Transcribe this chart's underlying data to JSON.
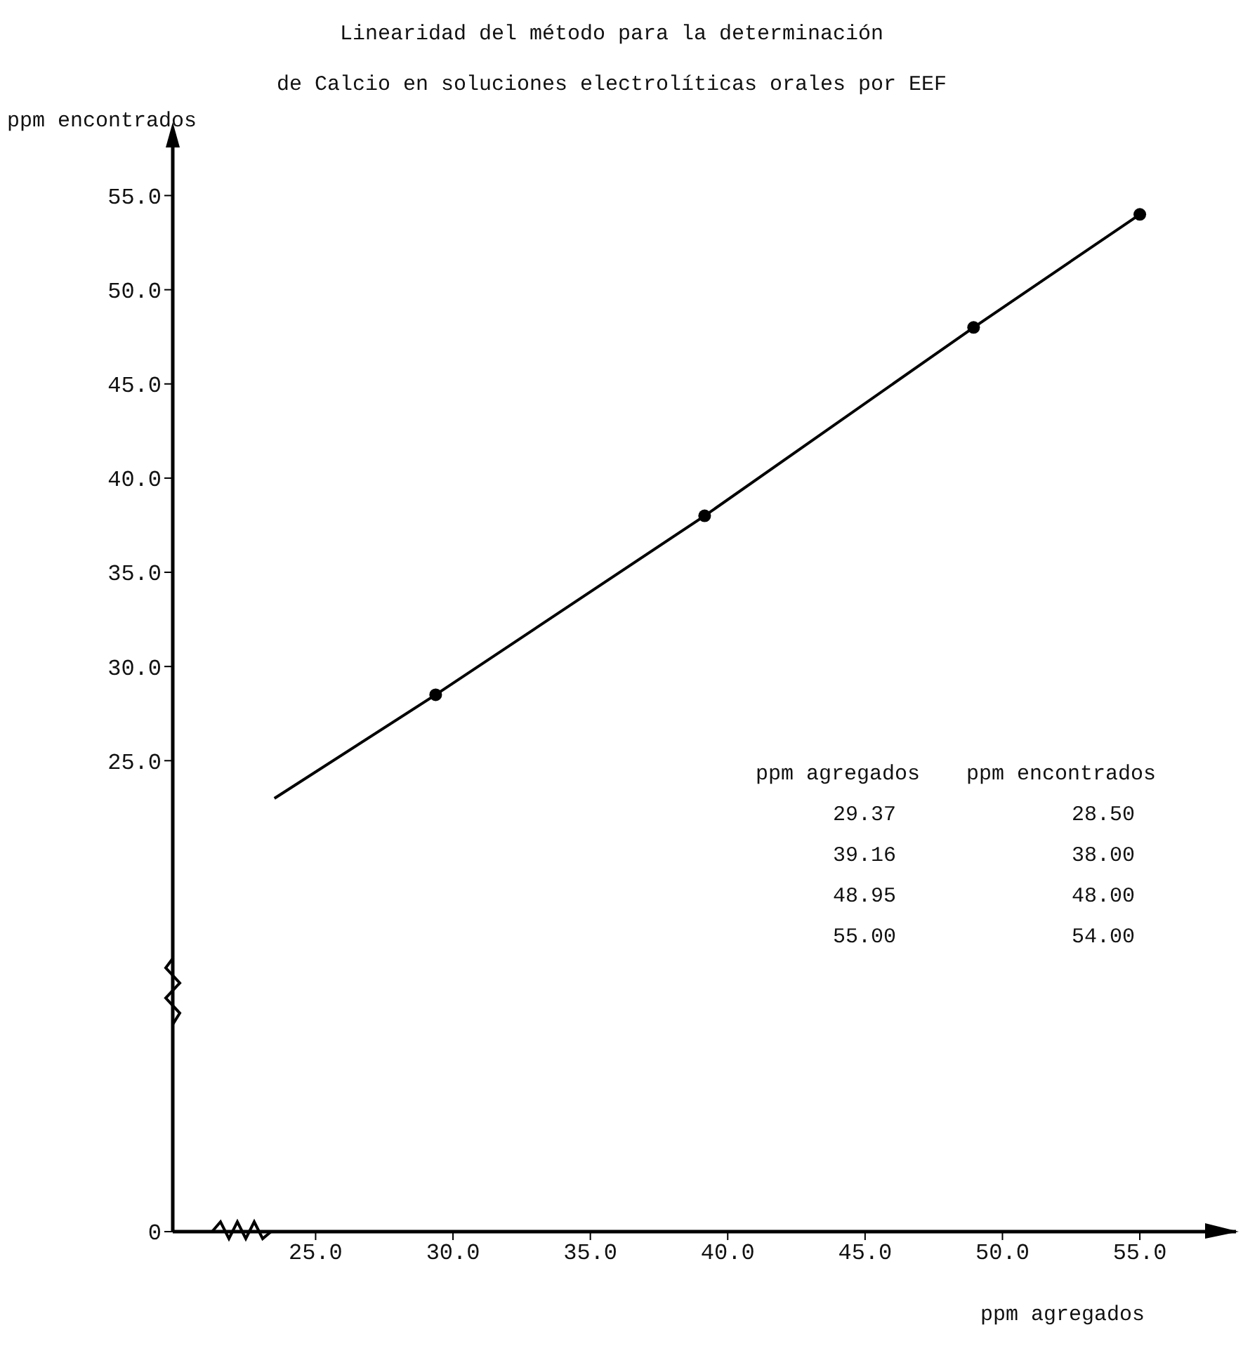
{
  "chart_data": {
    "type": "scatter",
    "title": "Linearidad del método para la determinación",
    "subtitle": "de Calcio en soluciones electrolíticas orales por EEF",
    "xlabel": "ppm agregados",
    "ylabel": "ppm encontrados",
    "xlim": [
      19.8,
      58.5
    ],
    "ylim": [
      0,
      58
    ],
    "xticks": [
      {
        "value": 25,
        "label": "25.0"
      },
      {
        "value": 30,
        "label": "30.0"
      },
      {
        "value": 35,
        "label": "35.0"
      },
      {
        "value": 40,
        "label": "40.0"
      },
      {
        "value": 45,
        "label": "45.0"
      },
      {
        "value": 50,
        "label": "50.0"
      },
      {
        "value": 55,
        "label": "55.0"
      }
    ],
    "yticks": [
      0,
      {
        "value": 25,
        "label": "25.0"
      },
      {
        "value": 30,
        "label": "30.0"
      },
      {
        "value": 35,
        "label": "35.0"
      },
      {
        "value": 40,
        "label": "40.0"
      },
      {
        "value": 45,
        "label": "45.0"
      },
      {
        "value": 50,
        "label": "50.0"
      },
      {
        "value": 55,
        "label": "55.0"
      }
    ],
    "series": [
      {
        "color": "#000000",
        "x": [
          29.37,
          39.16,
          48.95,
          55.0
        ],
        "values": [
          28.5,
          38.0,
          48.0,
          54.0
        ],
        "marker": "circle"
      },
      {
        "type": "line",
        "color": "#000000",
        "x": [
          23.5,
          29.37,
          39.16,
          48.95,
          55.0
        ],
        "values": [
          23.0,
          28.5,
          38.0,
          48.0,
          54.0
        ],
        "marker": "none",
        "line_style": "solid"
      }
    ],
    "annotations": [
      "29.37",
      "28.50",
      "39.16",
      "38.00",
      "48.95",
      "48.00",
      "55.00",
      "54.00"
    ],
    "grid": false
  }
}
